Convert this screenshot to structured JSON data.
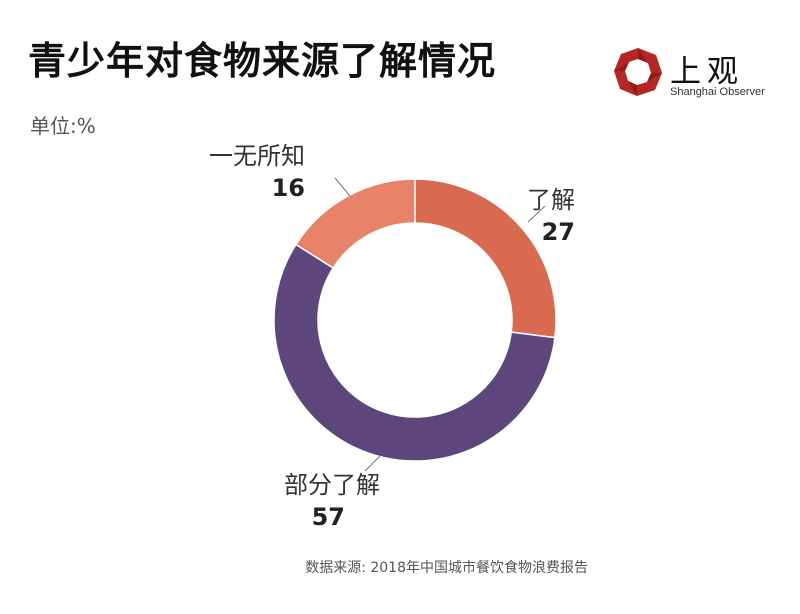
{
  "title": "青少年对食物来源了解情况",
  "unit": "单位:%",
  "logo": {
    "cn": "上观",
    "en": "Shanghai Observer"
  },
  "source": "数据来源: 2018年中国城市餐饮食物浪费报告",
  "chart_data": {
    "type": "pie",
    "donut": true,
    "slices": [
      {
        "label": "了解",
        "value": 27,
        "color": "#D96A4F"
      },
      {
        "label": "部分了解",
        "value": 57,
        "color": "#5C467C"
      },
      {
        "label": "一无所知",
        "value": 16,
        "color": "#E8836A"
      }
    ]
  }
}
